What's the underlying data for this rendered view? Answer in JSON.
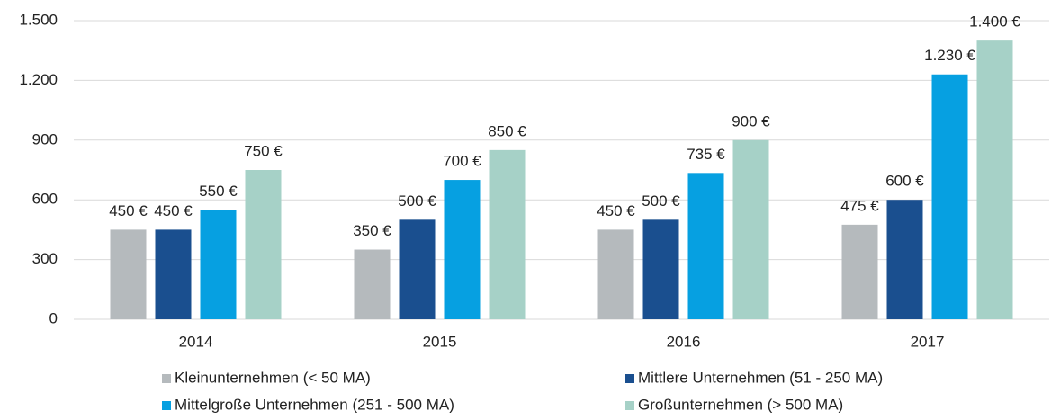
{
  "chart_data": {
    "type": "bar",
    "categories": [
      "2014",
      "2015",
      "2016",
      "2017"
    ],
    "series": [
      {
        "name": "Kleinunternehmen (< 50 MA)",
        "color": "#b5babd",
        "values": [
          450,
          350,
          450,
          475
        ],
        "value_labels": [
          "450 €",
          "350 €",
          "450 €",
          "475 €"
        ]
      },
      {
        "name": "Mittlere Unternehmen (51 - 250 MA)",
        "color": "#1a4f8f",
        "values": [
          450,
          500,
          500,
          600
        ],
        "value_labels": [
          "450 €",
          "500 €",
          "500 €",
          "600 €"
        ]
      },
      {
        "name": "Mittelgroße Unternehmen (251 - 500 MA)",
        "color": "#06a0e1",
        "values": [
          550,
          700,
          735,
          1230
        ],
        "value_labels": [
          "550 €",
          "700 €",
          "735 €",
          "1.230 €"
        ]
      },
      {
        "name": "Großunternehmen (> 500 MA)",
        "color": "#a6d1c7",
        "values": [
          750,
          850,
          900,
          1400
        ],
        "value_labels": [
          "750 €",
          "850 €",
          "900 €",
          "1.400 €"
        ]
      }
    ],
    "ylim": [
      0,
      1500
    ],
    "yticks": [
      0,
      300,
      600,
      900,
      {
        "value": 1200,
        "label": "1.200"
      },
      {
        "value": 1500,
        "label": "1.500"
      }
    ],
    "grid": true,
    "legend": "bottom"
  }
}
